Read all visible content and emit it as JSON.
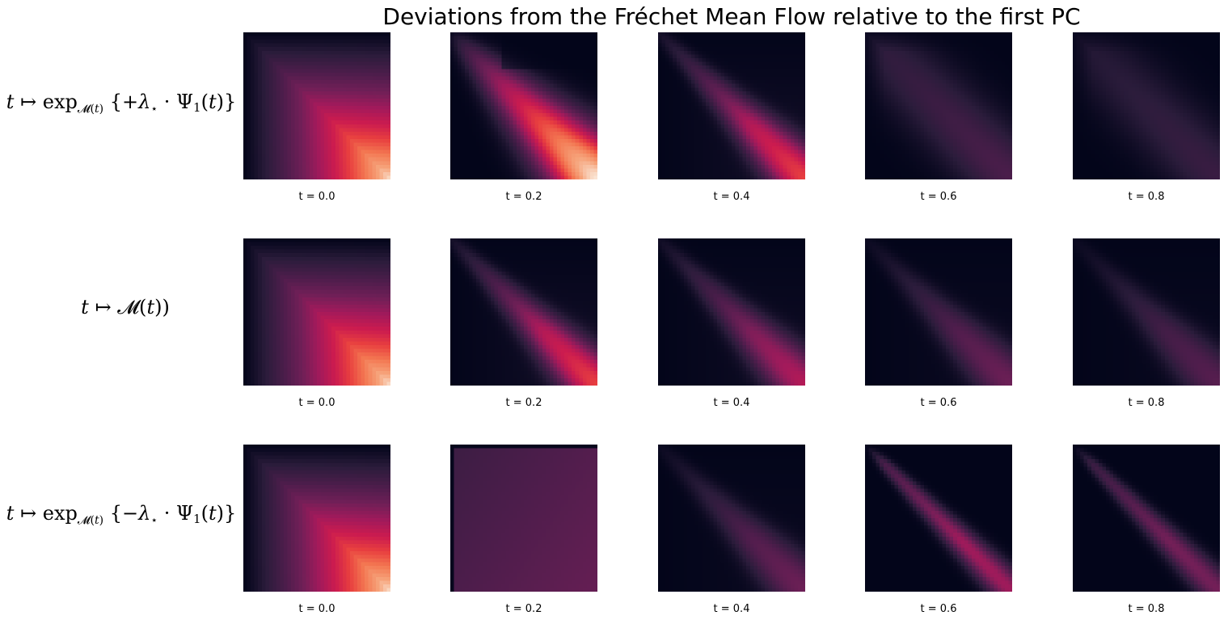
{
  "chart_data": {
    "type": "heatmap",
    "title": "Deviations from the Fréchet Mean Flow relative to the first PC",
    "colormap": "rocket",
    "colormap_stops": [
      "#03051a",
      "#2b1c3b",
      "#4c1d4b",
      "#701f57",
      "#a11a5b",
      "#cb1b4f",
      "#e83f3f",
      "#f37651",
      "#f6a47b",
      "#faebdd"
    ],
    "rows": [
      {
        "label": "t ↦ exp_M(t) {+λ⋆ · Ψ1(t)}",
        "panels": [
          {
            "t_label": "t = 0.0",
            "t": 0.0,
            "peak": 0.98,
            "shape": "corner"
          },
          {
            "t_label": "t = 0.2",
            "t": 0.2,
            "peak": 1.0,
            "shape": "diagonal-wide"
          },
          {
            "t_label": "t = 0.4",
            "t": 0.4,
            "peak": 0.62,
            "shape": "diagonal"
          },
          {
            "t_label": "t = 0.6",
            "t": 0.6,
            "peak": 0.22,
            "shape": "diagonal-faint"
          },
          {
            "t_label": "t = 0.8",
            "t": 0.8,
            "peak": 0.16,
            "shape": "diagonal-faint"
          }
        ]
      },
      {
        "label": "t ↦ M(t))",
        "panels": [
          {
            "t_label": "t = 0.0",
            "t": 0.0,
            "peak": 0.98,
            "shape": "corner"
          },
          {
            "t_label": "t = 0.2",
            "t": 0.2,
            "peak": 0.62,
            "shape": "diagonal"
          },
          {
            "t_label": "t = 0.4",
            "t": 0.4,
            "peak": 0.46,
            "shape": "diagonal"
          },
          {
            "t_label": "t = 0.6",
            "t": 0.6,
            "peak": 0.3,
            "shape": "diagonal"
          },
          {
            "t_label": "t = 0.8",
            "t": 0.8,
            "peak": 0.24,
            "shape": "diagonal"
          }
        ]
      },
      {
        "label": "t ↦ exp_M(t) {−λ⋆ · Ψ1(t)}",
        "panels": [
          {
            "t_label": "t = 0.0",
            "t": 0.0,
            "peak": 0.98,
            "shape": "corner"
          },
          {
            "t_label": "t = 0.2",
            "t": 0.2,
            "peak": 0.3,
            "shape": "flat"
          },
          {
            "t_label": "t = 0.4",
            "t": 0.4,
            "peak": 0.3,
            "shape": "diagonal"
          },
          {
            "t_label": "t = 0.6",
            "t": 0.6,
            "peak": 0.44,
            "shape": "diagonal-sharp"
          },
          {
            "t_label": "t = 0.8",
            "t": 0.8,
            "peak": 0.34,
            "shape": "diagonal-sharp"
          }
        ]
      }
    ]
  }
}
